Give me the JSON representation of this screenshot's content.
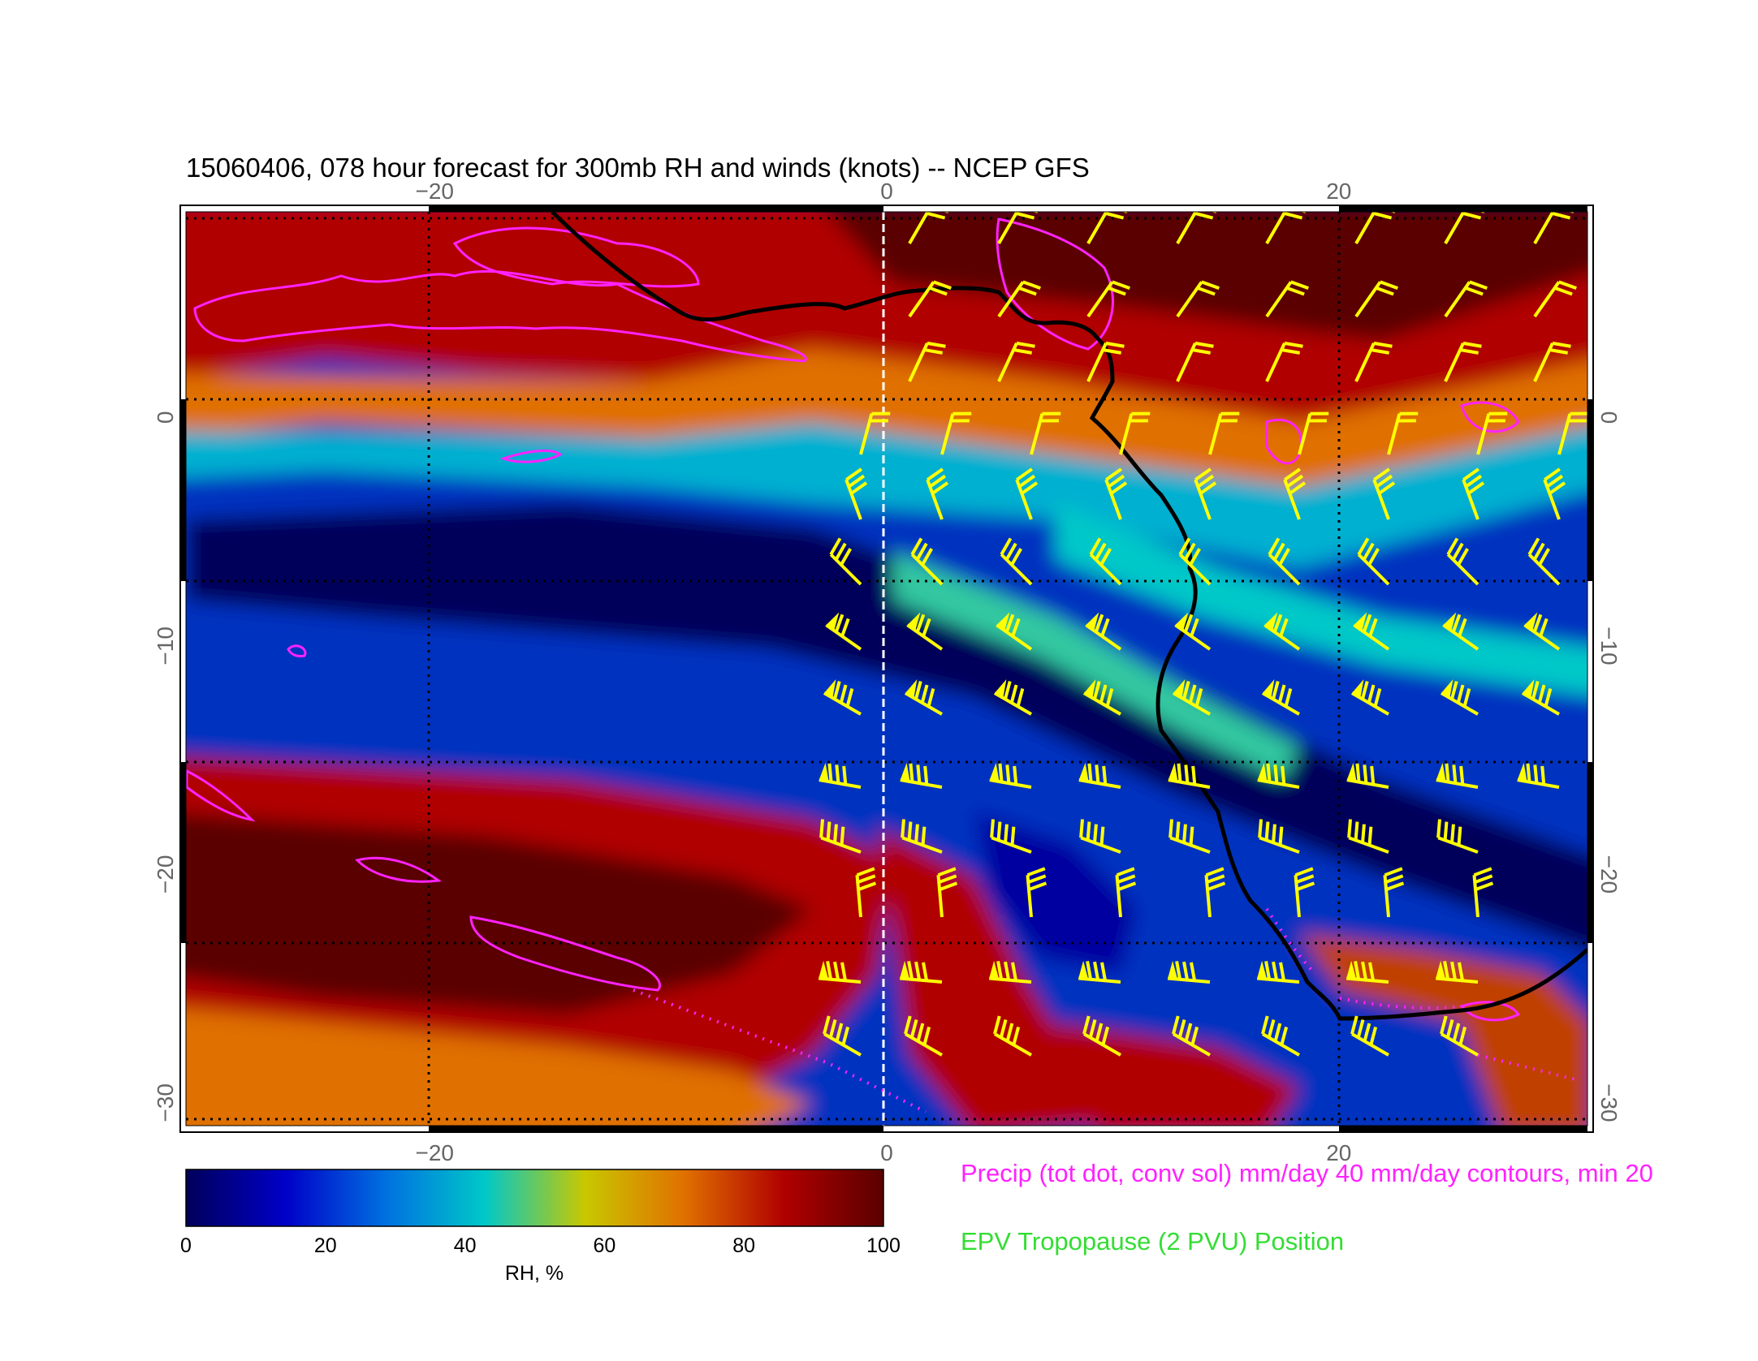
{
  "title": "15060406, 078 hour forecast for 300mb RH and winds (knots) -- NCEP GFS",
  "map": {
    "lon_range": [
      -31,
      31
    ],
    "lat_range": [
      9,
      -31
    ],
    "lon_ticks": [
      {
        "value": -20,
        "label": "−20"
      },
      {
        "value": 0,
        "label": "0"
      },
      {
        "value": 20,
        "label": "20"
      }
    ],
    "lat_ticks": [
      {
        "value": 0,
        "label": "0"
      },
      {
        "value": -10,
        "label": "−10"
      },
      {
        "value": -20,
        "label": "−20"
      },
      {
        "value": -30,
        "label": "−30"
      }
    ],
    "grid": true,
    "colors": {
      "wind_barbs": "#ffff00",
      "precip_contours": "#ff22ff",
      "tropopause_line": "#000000",
      "grid": "#000000"
    }
  },
  "colorbar": {
    "label": "RH, %",
    "min": 0,
    "max": 100,
    "ticks": [
      "0",
      "20",
      "40",
      "60",
      "80",
      "100"
    ],
    "stops": [
      "#00005a",
      "#0000c8",
      "#0070e0",
      "#00c8c8",
      "#c8c800",
      "#e07000",
      "#b00000",
      "#5a0000"
    ]
  },
  "legend": {
    "precip": "Precip (tot dot, conv sol) mm/day 40 mm/day contours, min 20",
    "epv": "EPV Tropopause (2 PVU) Position"
  }
}
